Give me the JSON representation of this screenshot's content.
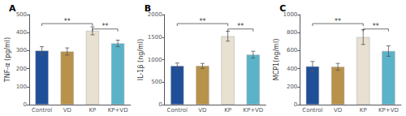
{
  "chart_data": [
    {
      "type": "bar",
      "title": "A",
      "ylabel": "TNF-α (pg/ml)",
      "categories": [
        "Control",
        "VD",
        "KP",
        "KP+VD"
      ],
      "values": [
        300,
        295,
        410,
        340
      ],
      "errors": [
        22,
        20,
        22,
        18
      ],
      "colors": [
        "#1f4f99",
        "#b8924a",
        "#e8e0d0",
        "#5ab3c8"
      ],
      "ylim": [
        0,
        500
      ],
      "yticks": [
        0,
        100,
        200,
        300,
        400,
        500
      ],
      "grid": false,
      "annotations": [
        {
          "text": "**",
          "x": [
            "Control",
            "KP"
          ],
          "y": 450
        },
        {
          "text": "**",
          "x": [
            "KP",
            "KP+VD"
          ],
          "y": 420
        }
      ]
    },
    {
      "type": "bar",
      "title": "B",
      "ylabel": "IL-1β (ng/ml)",
      "categories": [
        "Control",
        "VD",
        "KP",
        "KP+VD"
      ],
      "values": [
        860,
        860,
        1520,
        1110
      ],
      "errors": [
        65,
        55,
        110,
        75
      ],
      "colors": [
        "#1f4f99",
        "#b8924a",
        "#e8e0d0",
        "#5ab3c8"
      ],
      "ylim": [
        0,
        2000
      ],
      "yticks": [
        0,
        500,
        1000,
        1500,
        2000
      ],
      "grid": false,
      "annotations": [
        {
          "text": "**",
          "x": [
            "Control",
            "KP"
          ],
          "y": 1800
        },
        {
          "text": "**",
          "x": [
            "KP",
            "KP+VD"
          ],
          "y": 1680
        }
      ]
    },
    {
      "type": "bar",
      "title": "C",
      "ylabel": "MCP1(ng/ml)",
      "categories": [
        "Control",
        "VD",
        "KP",
        "KP+VD"
      ],
      "values": [
        425,
        420,
        750,
        595
      ],
      "errors": [
        55,
        38,
        82,
        58
      ],
      "colors": [
        "#1f4f99",
        "#b8924a",
        "#e8e0d0",
        "#5ab3c8"
      ],
      "ylim": [
        0,
        1000
      ],
      "yticks": [
        0,
        200,
        400,
        600,
        800,
        1000
      ],
      "grid": false,
      "annotations": [
        {
          "text": "**",
          "x": [
            "Control",
            "KP"
          ],
          "y": 900
        },
        {
          "text": "**",
          "x": [
            "KP",
            "KP+VD"
          ],
          "y": 840
        }
      ]
    }
  ]
}
